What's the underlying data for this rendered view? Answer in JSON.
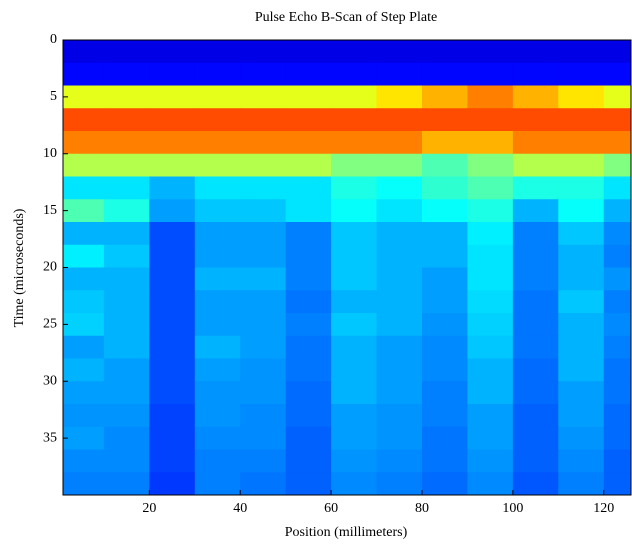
{
  "chart_data": {
    "type": "heatmap",
    "title": "Pulse Echo B-Scan of Step Plate",
    "xlabel": "Position (millimeters)",
    "ylabel": "Time (microseconds)",
    "xlim": [
      1,
      126
    ],
    "ylim": [
      40,
      0
    ],
    "xticks": [
      20,
      40,
      60,
      80,
      100,
      120
    ],
    "yticks": [
      0,
      5,
      10,
      15,
      20,
      25,
      30,
      35
    ],
    "colormap": "jet",
    "xbins": [
      1,
      10,
      20,
      30,
      40,
      50,
      60,
      70,
      80,
      90,
      100,
      110,
      120,
      126
    ],
    "ybins": [
      0,
      2,
      4,
      6,
      8,
      10,
      12,
      14,
      16,
      18,
      20,
      22,
      24,
      26,
      28,
      30,
      32,
      34,
      36,
      38,
      40
    ],
    "z": [
      [
        0.1,
        0.1,
        0.1,
        0.1,
        0.1,
        0.1,
        0.1,
        0.1,
        0.1,
        0.1,
        0.1,
        0.1,
        0.1
      ],
      [
        0.13,
        0.13,
        0.13,
        0.13,
        0.13,
        0.13,
        0.13,
        0.13,
        0.13,
        0.13,
        0.13,
        0.13,
        0.13
      ],
      [
        0.6,
        0.6,
        0.6,
        0.6,
        0.6,
        0.6,
        0.6,
        0.65,
        0.7,
        0.75,
        0.7,
        0.65,
        0.6
      ],
      [
        0.8,
        0.8,
        0.8,
        0.8,
        0.8,
        0.8,
        0.8,
        0.8,
        0.8,
        0.8,
        0.8,
        0.8,
        0.8
      ],
      [
        0.75,
        0.75,
        0.75,
        0.75,
        0.75,
        0.75,
        0.75,
        0.75,
        0.7,
        0.7,
        0.75,
        0.75,
        0.75
      ],
      [
        0.55,
        0.55,
        0.55,
        0.55,
        0.55,
        0.55,
        0.5,
        0.5,
        0.45,
        0.5,
        0.55,
        0.55,
        0.5
      ],
      [
        0.35,
        0.35,
        0.3,
        0.35,
        0.35,
        0.35,
        0.4,
        0.38,
        0.42,
        0.45,
        0.4,
        0.4,
        0.35
      ],
      [
        0.45,
        0.4,
        0.28,
        0.32,
        0.32,
        0.35,
        0.38,
        0.35,
        0.38,
        0.4,
        0.3,
        0.38,
        0.3
      ],
      [
        0.3,
        0.3,
        0.2,
        0.28,
        0.28,
        0.25,
        0.32,
        0.3,
        0.3,
        0.36,
        0.25,
        0.32,
        0.26
      ],
      [
        0.36,
        0.32,
        0.2,
        0.28,
        0.28,
        0.25,
        0.32,
        0.3,
        0.3,
        0.35,
        0.25,
        0.3,
        0.25
      ],
      [
        0.3,
        0.3,
        0.2,
        0.3,
        0.3,
        0.25,
        0.32,
        0.3,
        0.28,
        0.35,
        0.25,
        0.3,
        0.27
      ],
      [
        0.32,
        0.3,
        0.2,
        0.28,
        0.28,
        0.24,
        0.3,
        0.3,
        0.28,
        0.34,
        0.24,
        0.32,
        0.25
      ],
      [
        0.33,
        0.3,
        0.2,
        0.28,
        0.28,
        0.25,
        0.32,
        0.3,
        0.27,
        0.33,
        0.24,
        0.3,
        0.26
      ],
      [
        0.28,
        0.3,
        0.2,
        0.3,
        0.28,
        0.24,
        0.3,
        0.28,
        0.26,
        0.32,
        0.24,
        0.3,
        0.25
      ],
      [
        0.3,
        0.28,
        0.2,
        0.28,
        0.27,
        0.24,
        0.3,
        0.28,
        0.26,
        0.3,
        0.23,
        0.3,
        0.24
      ],
      [
        0.28,
        0.28,
        0.2,
        0.27,
        0.27,
        0.23,
        0.3,
        0.28,
        0.25,
        0.3,
        0.23,
        0.28,
        0.24
      ],
      [
        0.27,
        0.27,
        0.19,
        0.27,
        0.26,
        0.23,
        0.28,
        0.27,
        0.25,
        0.28,
        0.22,
        0.28,
        0.23
      ],
      [
        0.28,
        0.26,
        0.19,
        0.26,
        0.26,
        0.22,
        0.28,
        0.27,
        0.24,
        0.28,
        0.22,
        0.27,
        0.23
      ],
      [
        0.26,
        0.26,
        0.19,
        0.25,
        0.25,
        0.22,
        0.27,
        0.26,
        0.24,
        0.27,
        0.22,
        0.26,
        0.22
      ],
      [
        0.25,
        0.25,
        0.18,
        0.25,
        0.24,
        0.22,
        0.26,
        0.25,
        0.23,
        0.26,
        0.21,
        0.25,
        0.22
      ]
    ]
  }
}
